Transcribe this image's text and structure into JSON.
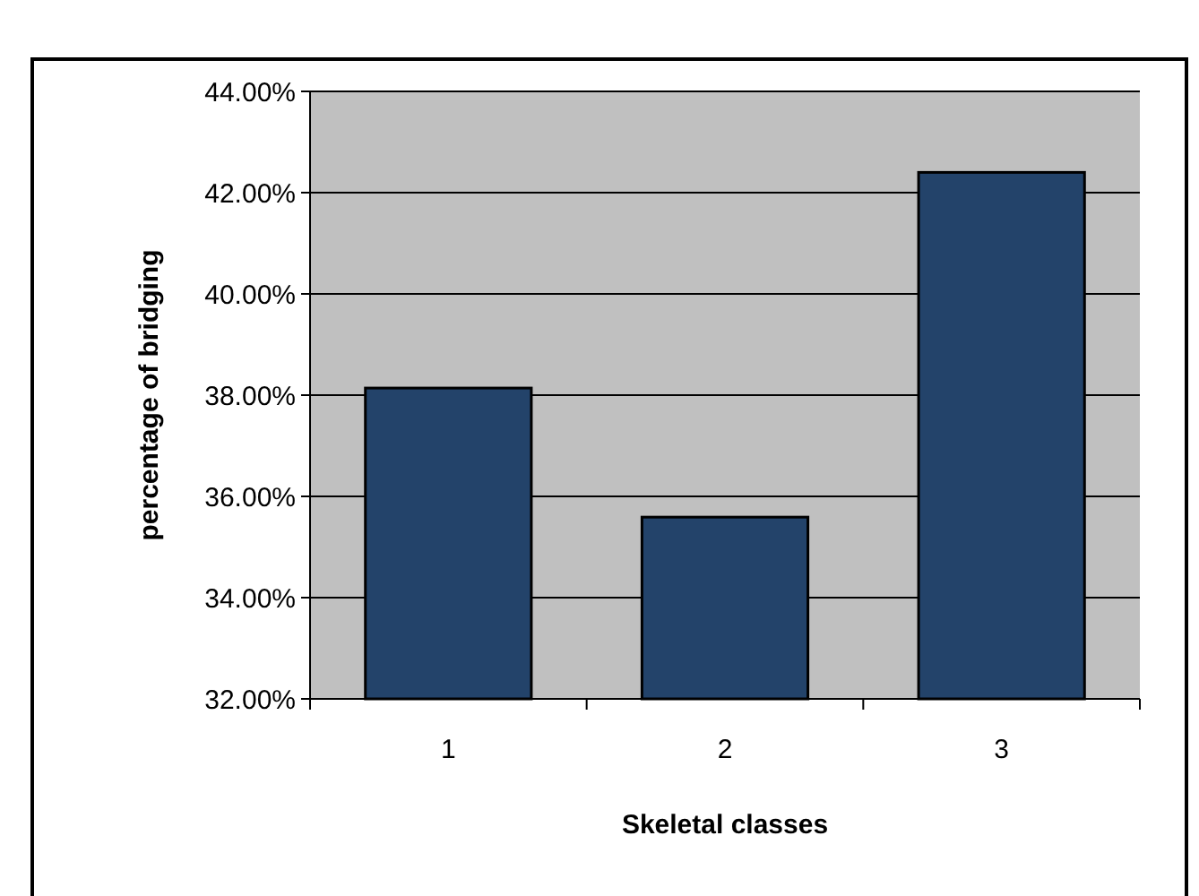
{
  "chart_data": {
    "type": "bar",
    "xlabel": "Skeletal classes",
    "ylabel": "percentage of bridging",
    "categories": [
      "1",
      "2",
      "3"
    ],
    "values": [
      38.14,
      35.59,
      42.4
    ],
    "color": "#23436a",
    "ylim": [
      32,
      44
    ],
    "yticks": [
      {
        "value": 32,
        "label": "32.00%"
      },
      {
        "value": 34,
        "label": "34.00%"
      },
      {
        "value": 36,
        "label": "36.00%"
      },
      {
        "value": 38,
        "label": "38.00%"
      },
      {
        "value": 40,
        "label": "40.00%"
      },
      {
        "value": 42,
        "label": "42.00%"
      },
      {
        "value": 44,
        "label": "44.00%"
      }
    ],
    "grid": "y"
  }
}
